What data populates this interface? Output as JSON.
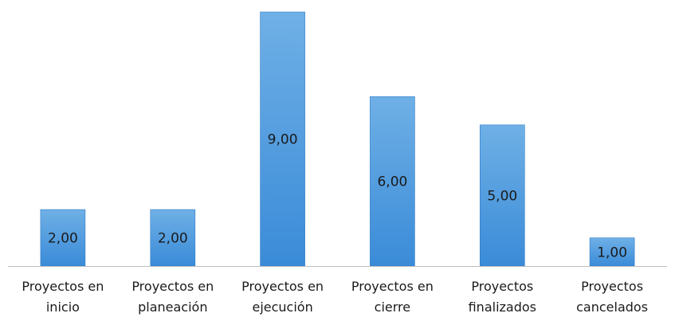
{
  "chart_data": {
    "type": "bar",
    "categories": [
      [
        "Proyectos en",
        "inicio"
      ],
      [
        "Proyectos en",
        "planeación"
      ],
      [
        "Proyectos en",
        "ejecución"
      ],
      [
        "Proyectos en",
        "cierre"
      ],
      [
        "Proyectos",
        "finalizados"
      ],
      [
        "Proyectos",
        "cancelados"
      ]
    ],
    "values": [
      2,
      2,
      9,
      6,
      5,
      1
    ],
    "value_labels": [
      "2,00",
      "2,00",
      "9,00",
      "6,00",
      "5,00",
      "1,00"
    ],
    "ylim": [
      0,
      9
    ],
    "grid": false,
    "legend": "none",
    "colors": {
      "bar_top": "#6fb0e6",
      "bar_bottom": "#3a8bd8",
      "bar_edge": "#2f7bc6",
      "axis": "#bfbfbf"
    }
  }
}
